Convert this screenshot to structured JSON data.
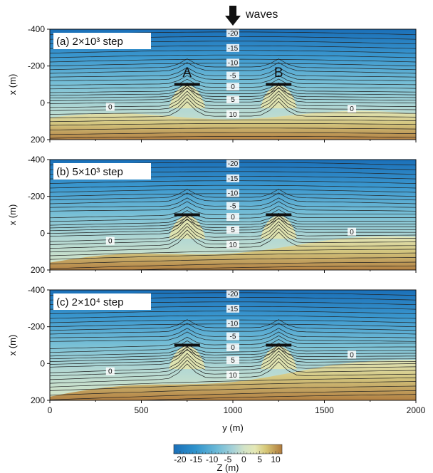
{
  "chart_data": {
    "type": "contour",
    "waves_label": "waves",
    "structures": [
      "A",
      "B"
    ],
    "xlabel": "y (m)",
    "ylabel": "x (m)",
    "xlim": [
      0,
      2000
    ],
    "ylim": [
      -400,
      200
    ],
    "x_ticks": [
      "0",
      "500",
      "1000",
      "1500",
      "2000"
    ],
    "y_ticks": [
      "-400",
      "-200",
      "0",
      "200"
    ],
    "contour_levels_labeled": [
      "-20",
      "-15",
      "-10",
      "-5",
      "0",
      "5",
      "10"
    ],
    "zero_label": "0",
    "panels": [
      {
        "label": "(a) 2×10³ step",
        "shoreline_left": 80,
        "shoreline_right": 60
      },
      {
        "label": "(b) 5×10³ step",
        "shoreline_left": 160,
        "shoreline_right": 20
      },
      {
        "label": "(c) 2×10⁴ step",
        "shoreline_left": 180,
        "shoreline_right": -20
      }
    ],
    "colorbar": {
      "label": "Z (m)",
      "ticks": [
        "-20",
        "-15",
        "-10",
        "-5",
        "0",
        "5",
        "10"
      ],
      "tick_values": [
        -20,
        -15,
        -10,
        -5,
        0,
        5,
        10
      ],
      "range": [
        -22,
        12
      ],
      "colors": [
        "#1a6fb8",
        "#2f93cc",
        "#5cb5d6",
        "#94cdd9",
        "#c3dfcf",
        "#e4e8b6",
        "#d9cc7a",
        "#c7a455",
        "#b07a3b"
      ]
    }
  }
}
